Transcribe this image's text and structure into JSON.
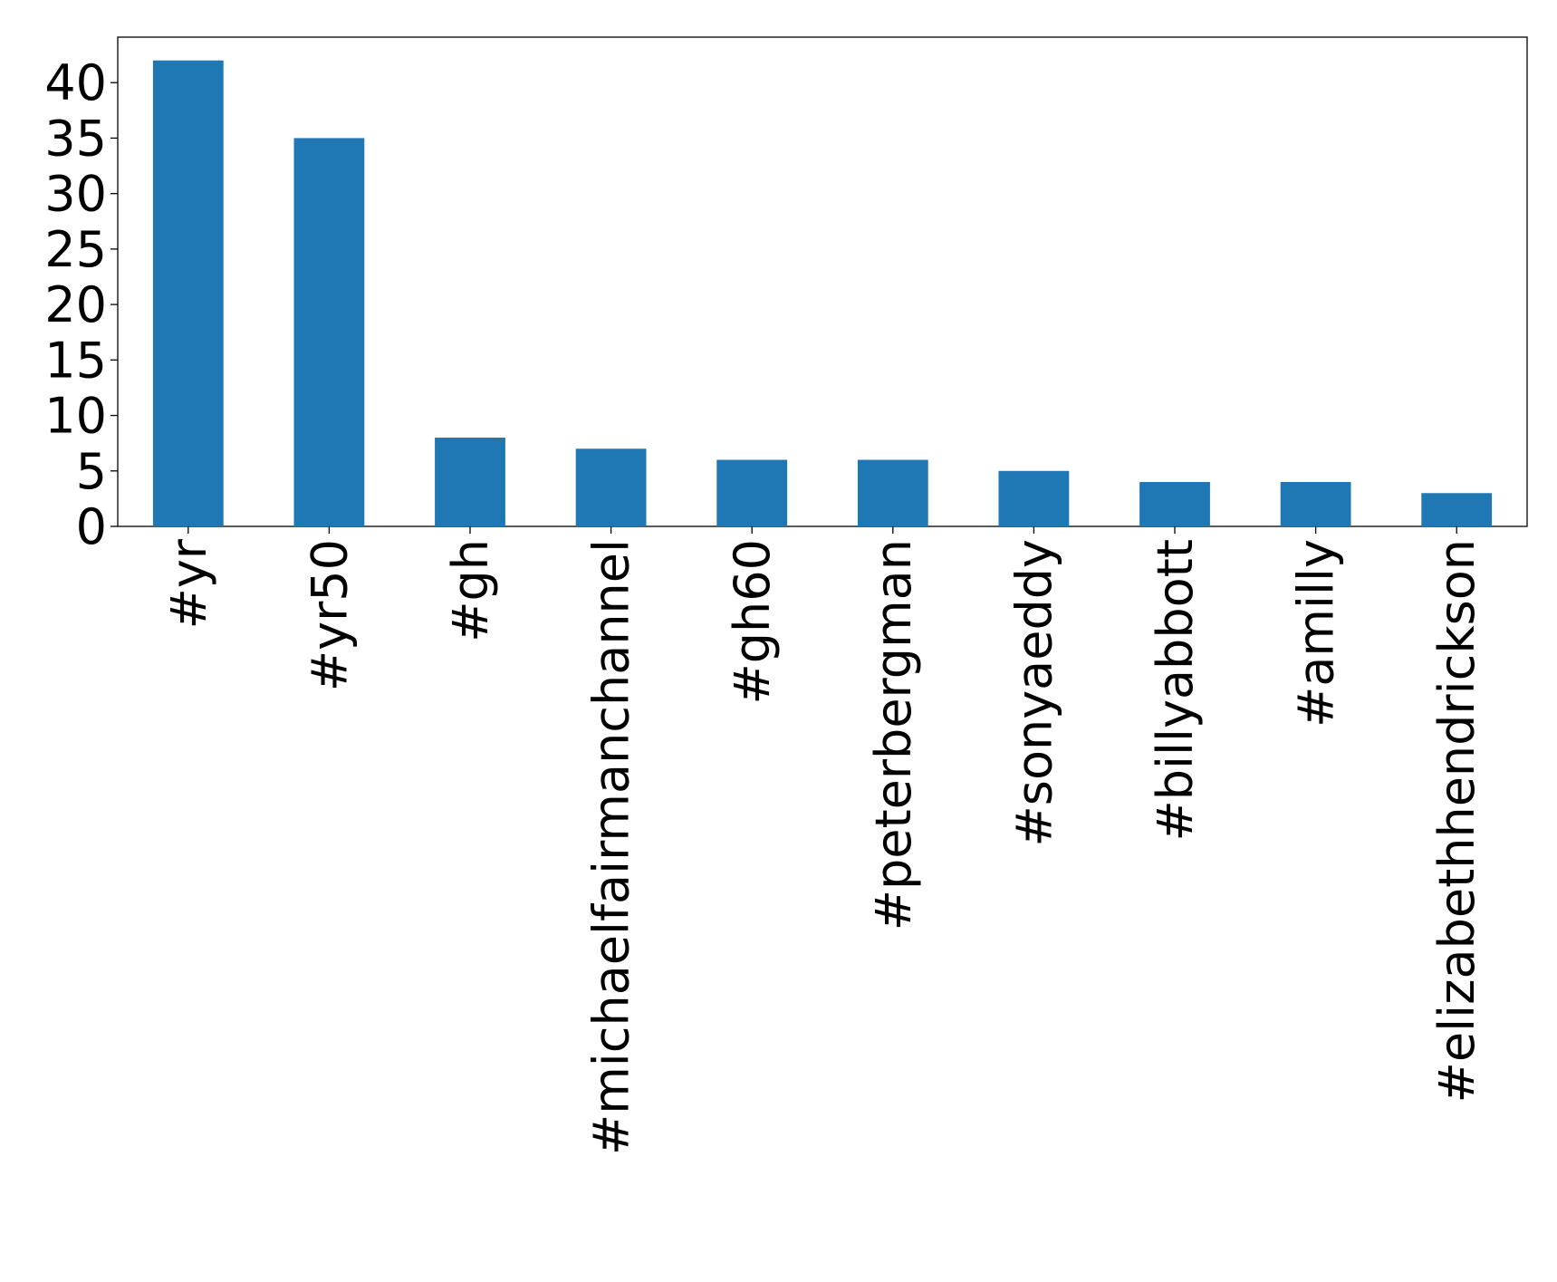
{
  "chart_data": {
    "type": "bar",
    "categories": [
      "#yr",
      "#yr50",
      "#gh",
      "#michaelfairmanchannel",
      "#gh60",
      "#peterbergman",
      "#sonyaeddy",
      "#billyabbott",
      "#amilly",
      "#elizabethhendrickson"
    ],
    "values": [
      42,
      35,
      8,
      7,
      6,
      6,
      5,
      4,
      4,
      3
    ],
    "color": "#1f77b4",
    "ylim": [
      0,
      44.1
    ],
    "yticks": [
      0,
      5,
      10,
      15,
      20,
      25,
      30,
      35,
      40
    ],
    "grid": false
  }
}
